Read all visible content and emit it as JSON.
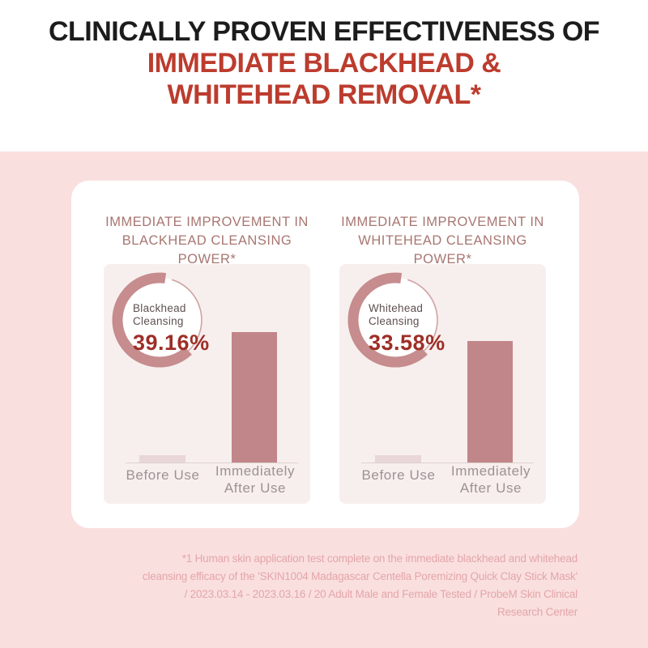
{
  "header": {
    "line1": "CLINICALLY PROVEN EFFECTIVENESS OF",
    "line2": "IMMEDIATE BLACKHEAD &",
    "line3": "WHITEHEAD REMOVAL*"
  },
  "card": {
    "panels": [
      {
        "title_line1": "IMMEDIATE IMPROVEMENT IN",
        "title_line2": "BLACKHEAD CLEANSING POWER*",
        "donut_label_line1": "Blackhead",
        "donut_label_line2": "Cleansing",
        "donut_value": "39.16%",
        "bar_label_1": "Before Use",
        "bar_label_2_line1": "Immediately",
        "bar_label_2_line2": "After Use"
      },
      {
        "title_line1": "IMMEDIATE IMPROVEMENT IN",
        "title_line2": "WHITEHEAD CLEANSING POWER*",
        "donut_label_line1": "Whitehead",
        "donut_label_line2": "Cleansing",
        "donut_value": "33.58%",
        "bar_label_1": "Before Use",
        "bar_label_2_line1": "Immediately",
        "bar_label_2_line2": "After Use"
      }
    ]
  },
  "chart_data": [
    {
      "type": "bar",
      "title": "IMMEDIATE IMPROVEMENT IN BLACKHEAD CLEANSING POWER*",
      "highlight_metric": {
        "label": "Blackhead Cleansing",
        "value_pct": 39.16
      },
      "categories": [
        "Before Use",
        "Immediately After Use"
      ],
      "values": [
        2.2,
        39.16
      ],
      "unit": "%",
      "ylim": [
        0,
        60
      ],
      "grid": false,
      "legend": false
    },
    {
      "type": "bar",
      "title": "IMMEDIATE IMPROVEMENT IN WHITEHEAD CLEANSING POWER*",
      "highlight_metric": {
        "label": "Whitehead Cleansing",
        "value_pct": 33.58
      },
      "categories": [
        "Before Use",
        "Immediately After Use"
      ],
      "values": [
        2.0,
        33.58
      ],
      "unit": "%",
      "ylim": [
        0,
        55
      ],
      "grid": false,
      "legend": false
    }
  ],
  "footnote": {
    "lines": [
      "*1 Human skin application test complete on the immediate blackhead and whitehead",
      "cleansing efficacy of the 'SKIN1004 Madagascar Centella Poremizing Quick Clay Stick Mask'",
      "/ 2023.03.14 - 2023.03.16 / 20 Adult Male and Female Tested / ProbeM Skin Clinical",
      "Research Center"
    ]
  },
  "colors": {
    "background_pink": "#fadfdf",
    "panel_background": "#f7efee",
    "accent_rose": "#c68c8e",
    "bar_after": "#c18689",
    "bar_before": "#e8d6d8",
    "headline_dark": "#1d1c1c",
    "headline_red": "#bc3c2e",
    "value_red": "#9e2e27",
    "title_rose": "#a87671",
    "footnote_pink": "#e3a6a9"
  }
}
